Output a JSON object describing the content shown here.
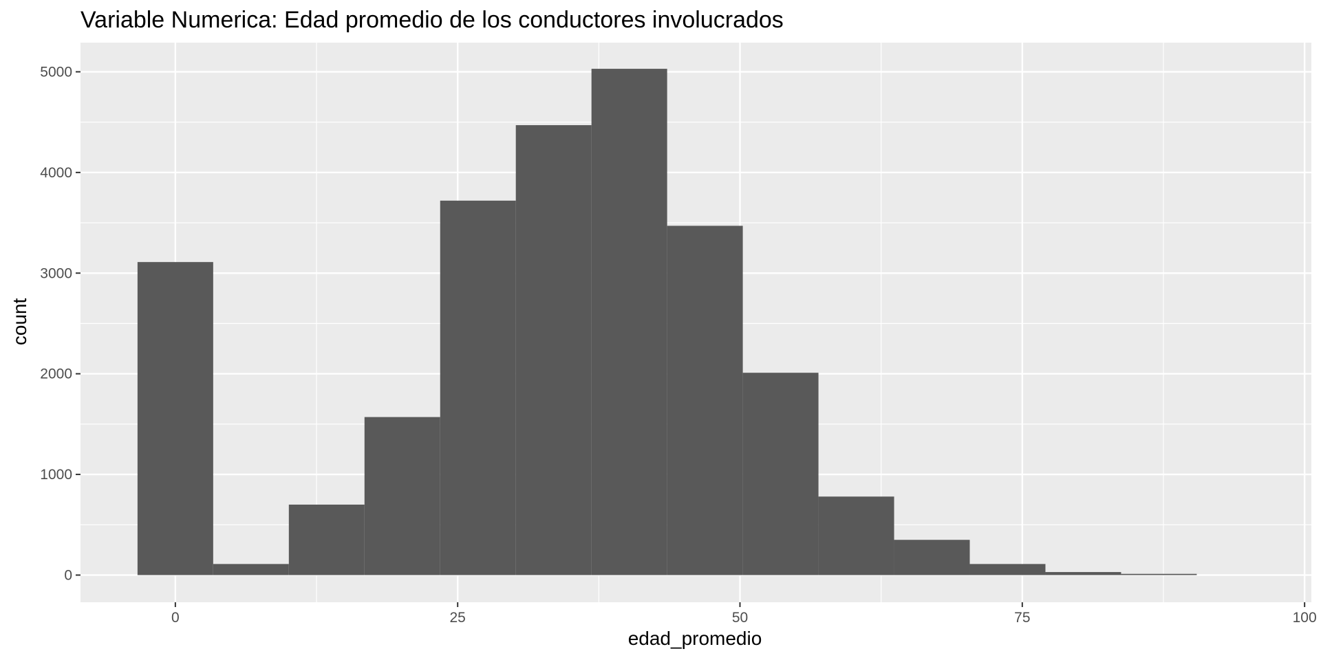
{
  "chart_data": {
    "type": "bar",
    "title": "Variable Numerica: Edad promedio de los conductores involucrados",
    "xlabel": "edad_promedio",
    "ylabel": "count",
    "xlim": [
      -8.4,
      100.6
    ],
    "ylim": [
      -270,
      5290
    ],
    "x_ticks": [
      0,
      25,
      50,
      75,
      100
    ],
    "y_ticks": [
      0,
      1000,
      2000,
      3000,
      4000,
      5000
    ],
    "bin_width": 6.7,
    "bins": [
      {
        "x0": -3.35,
        "x1": 3.35,
        "count": 3110
      },
      {
        "x0": 3.35,
        "x1": 10.05,
        "count": 110
      },
      {
        "x0": 10.05,
        "x1": 16.75,
        "count": 700
      },
      {
        "x0": 16.75,
        "x1": 23.45,
        "count": 1570
      },
      {
        "x0": 23.45,
        "x1": 30.15,
        "count": 3720
      },
      {
        "x0": 30.15,
        "x1": 36.85,
        "count": 4470
      },
      {
        "x0": 36.85,
        "x1": 43.55,
        "count": 5030
      },
      {
        "x0": 43.55,
        "x1": 50.25,
        "count": 3470
      },
      {
        "x0": 50.25,
        "x1": 56.95,
        "count": 2010
      },
      {
        "x0": 56.95,
        "x1": 63.65,
        "count": 780
      },
      {
        "x0": 63.65,
        "x1": 70.35,
        "count": 350
      },
      {
        "x0": 70.35,
        "x1": 77.05,
        "count": 110
      },
      {
        "x0": 77.05,
        "x1": 83.75,
        "count": 30
      },
      {
        "x0": 83.75,
        "x1": 90.45,
        "count": 12
      }
    ],
    "colors": {
      "panel": "#ebebeb",
      "grid": "#ffffff",
      "bar": "#595959",
      "tick": "#333333"
    },
    "grid": true,
    "legend": "none"
  }
}
